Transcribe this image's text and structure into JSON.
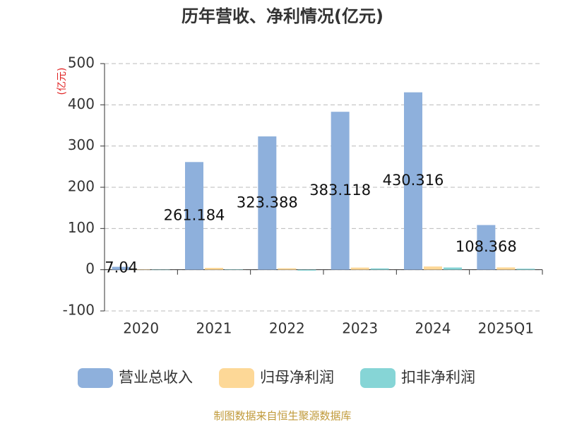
{
  "chart_data": {
    "type": "bar",
    "title": "历年营收、净利情况(亿元)",
    "y_label": "(亿元)",
    "source": "制图数据来自恒生聚源数据库",
    "categories": [
      "2020",
      "2021",
      "2022",
      "2023",
      "2024",
      "2025Q1"
    ],
    "series": [
      {
        "name": "营业总收入",
        "color": "#8eb0dc",
        "values": [
          7.04,
          261.184,
          323.388,
          383.118,
          430.316,
          108.368
        ],
        "show_labels": true
      },
      {
        "name": "归母净利润",
        "color": "#fdd897",
        "values": [
          0.6,
          4.5,
          3.5,
          5.2,
          7.8,
          5.6
        ],
        "show_labels": false
      },
      {
        "name": "扣非净利润",
        "color": "#86d5d6",
        "values": [
          -0.4,
          0.6,
          -2.2,
          3.2,
          5.4,
          2.4
        ],
        "show_labels": false
      }
    ],
    "ylim": [
      -100,
      500
    ],
    "yticks": [
      -100,
      0,
      100,
      200,
      300,
      400,
      500
    ],
    "grid": true
  }
}
